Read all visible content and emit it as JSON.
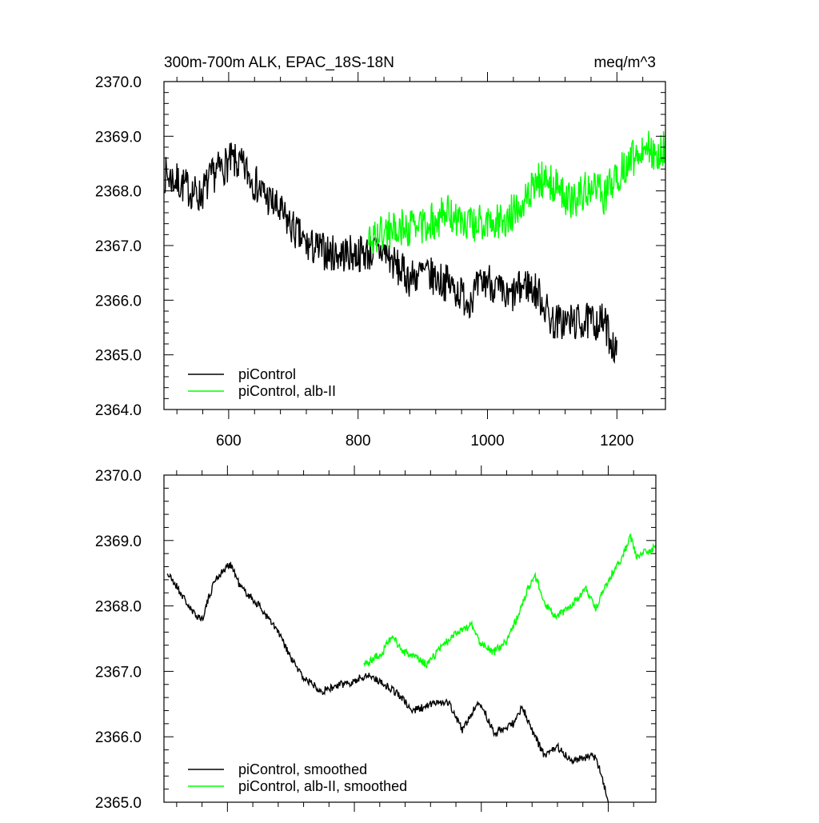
{
  "chart_data": [
    {
      "type": "line",
      "title_left": "300m-700m ALK, EPAC_18S-18N",
      "title_right": "meq/m^3",
      "xlim": [
        500,
        1275
      ],
      "ylim": [
        2364.0,
        2370.0
      ],
      "x_ticks": [
        600,
        800,
        1000,
        1200
      ],
      "x_tick_labels": [
        "600",
        "800",
        "1000",
        "1200"
      ],
      "y_ticks": [
        2364,
        2365,
        2366,
        2367,
        2368,
        2369,
        2370
      ],
      "y_tick_labels": [
        "2364.0",
        "2365.0",
        "2366.0",
        "2367.0",
        "2368.0",
        "2369.0",
        "2370.0"
      ],
      "show_x_tick_labels": true,
      "grid": false,
      "legend_position": "bottom-left",
      "noise": 0.35,
      "seed": 7,
      "series": [
        {
          "name": "piControl",
          "color": "#000000",
          "x_start": 501,
          "x_end": 1200,
          "anchors": [
            [
              501,
              2368.3
            ],
            [
              530,
              2368.1
            ],
            [
              555,
              2367.9
            ],
            [
              580,
              2368.35
            ],
            [
              605,
              2368.55
            ],
            [
              625,
              2368.4
            ],
            [
              650,
              2368.0
            ],
            [
              680,
              2367.6
            ],
            [
              720,
              2367.0
            ],
            [
              760,
              2366.85
            ],
            [
              800,
              2366.85
            ],
            [
              840,
              2366.9
            ],
            [
              860,
              2366.6
            ],
            [
              880,
              2366.4
            ],
            [
              900,
              2366.5
            ],
            [
              940,
              2366.3
            ],
            [
              970,
              2366.0
            ],
            [
              1000,
              2366.4
            ],
            [
              1030,
              2366.0
            ],
            [
              1060,
              2366.3
            ],
            [
              1080,
              2366.1
            ],
            [
              1100,
              2365.6
            ],
            [
              1140,
              2365.6
            ],
            [
              1180,
              2365.6
            ],
            [
              1190,
              2365.3
            ],
            [
              1200,
              2365.0
            ]
          ]
        },
        {
          "name": "piControl, alb-II",
          "color": "#00ff00",
          "x_start": 815,
          "x_end": 1275,
          "anchors": [
            [
              815,
              2367.1
            ],
            [
              850,
              2367.3
            ],
            [
              900,
              2367.35
            ],
            [
              940,
              2367.6
            ],
            [
              960,
              2367.4
            ],
            [
              1000,
              2367.4
            ],
            [
              1030,
              2367.5
            ],
            [
              1060,
              2367.9
            ],
            [
              1080,
              2368.2
            ],
            [
              1100,
              2368.15
            ],
            [
              1130,
              2367.8
            ],
            [
              1160,
              2368.1
            ],
            [
              1180,
              2367.9
            ],
            [
              1200,
              2368.3
            ],
            [
              1220,
              2368.5
            ],
            [
              1240,
              2368.85
            ],
            [
              1260,
              2368.7
            ],
            [
              1275,
              2368.8
            ]
          ]
        }
      ]
    },
    {
      "type": "line",
      "xlim": [
        500,
        1275
      ],
      "ylim": [
        2365.0,
        2370.0
      ],
      "x_ticks": [
        600,
        800,
        1000,
        1200
      ],
      "x_tick_labels": [],
      "y_ticks": [
        2365,
        2366,
        2367,
        2368,
        2369,
        2370
      ],
      "y_tick_labels": [
        "2365.0",
        "2366.0",
        "2367.0",
        "2368.0",
        "2369.0",
        "2370.0"
      ],
      "show_x_tick_labels": false,
      "grid": false,
      "legend_position": "bottom-left",
      "noise": 0.06,
      "seed": 21,
      "series": [
        {
          "name": "piControl, smoothed",
          "color": "#000000",
          "x_start": 505,
          "x_end": 1200,
          "anchors": [
            [
              505,
              2368.5
            ],
            [
              520,
              2368.3
            ],
            [
              545,
              2367.9
            ],
            [
              560,
              2367.8
            ],
            [
              580,
              2368.4
            ],
            [
              605,
              2368.65
            ],
            [
              620,
              2368.3
            ],
            [
              650,
              2368.0
            ],
            [
              680,
              2367.6
            ],
            [
              700,
              2367.2
            ],
            [
              720,
              2366.9
            ],
            [
              750,
              2366.7
            ],
            [
              780,
              2366.8
            ],
            [
              800,
              2366.85
            ],
            [
              820,
              2366.95
            ],
            [
              840,
              2366.85
            ],
            [
              870,
              2366.65
            ],
            [
              890,
              2366.4
            ],
            [
              910,
              2366.45
            ],
            [
              935,
              2366.55
            ],
            [
              950,
              2366.5
            ],
            [
              970,
              2366.1
            ],
            [
              990,
              2366.45
            ],
            [
              1000,
              2366.5
            ],
            [
              1020,
              2366.05
            ],
            [
              1050,
              2366.2
            ],
            [
              1065,
              2366.45
            ],
            [
              1080,
              2366.1
            ],
            [
              1100,
              2365.7
            ],
            [
              1120,
              2365.85
            ],
            [
              1140,
              2365.65
            ],
            [
              1180,
              2365.7
            ],
            [
              1190,
              2365.4
            ],
            [
              1200,
              2365.0
            ]
          ]
        },
        {
          "name": "piControl, alb-II, smoothed",
          "color": "#00ff00",
          "x_start": 815,
          "x_end": 1275,
          "anchors": [
            [
              815,
              2367.1
            ],
            [
              845,
              2367.3
            ],
            [
              860,
              2367.55
            ],
            [
              875,
              2367.3
            ],
            [
              900,
              2367.2
            ],
            [
              915,
              2367.1
            ],
            [
              940,
              2367.4
            ],
            [
              960,
              2367.6
            ],
            [
              985,
              2367.7
            ],
            [
              1000,
              2367.4
            ],
            [
              1020,
              2367.3
            ],
            [
              1040,
              2367.45
            ],
            [
              1060,
              2367.9
            ],
            [
              1075,
              2368.3
            ],
            [
              1085,
              2368.45
            ],
            [
              1100,
              2368.05
            ],
            [
              1115,
              2367.85
            ],
            [
              1130,
              2367.9
            ],
            [
              1150,
              2368.1
            ],
            [
              1165,
              2368.25
            ],
            [
              1180,
              2367.95
            ],
            [
              1200,
              2368.4
            ],
            [
              1220,
              2368.7
            ],
            [
              1235,
              2369.05
            ],
            [
              1245,
              2368.75
            ],
            [
              1275,
              2368.9
            ]
          ]
        }
      ]
    }
  ]
}
